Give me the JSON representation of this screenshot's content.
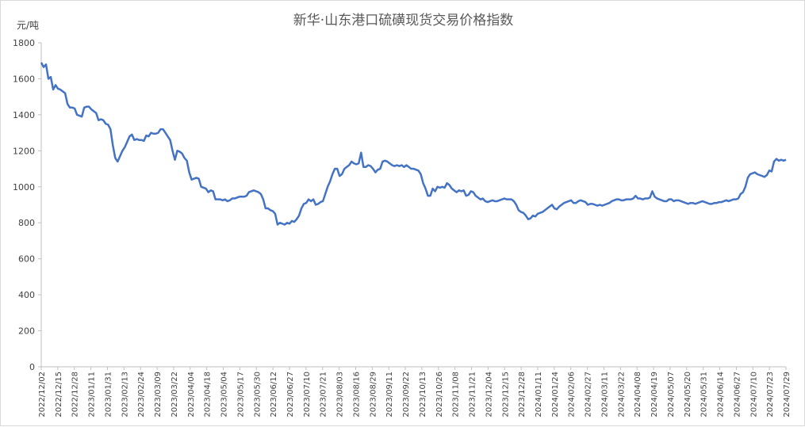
{
  "chart_data": {
    "type": "line",
    "title": "新华·山东港口硫磺现货交易价格指数",
    "ylabel": "元/吨",
    "xlabel": "",
    "ylim": [
      0,
      1800
    ],
    "y_ticks": [
      0,
      200,
      400,
      600,
      800,
      1000,
      1200,
      1400,
      1600,
      1800
    ],
    "x_tick_labels": [
      "2022/12/02",
      "2022/12/15",
      "2022/12/28",
      "2023/01/11",
      "2023/01/31",
      "2023/02/13",
      "2023/02/24",
      "2023/03/09",
      "2023/03/22",
      "2023/04/04",
      "2023/04/18",
      "2023/05/04",
      "2023/05/17",
      "2023/05/30",
      "2023/06/12",
      "2023/06/27",
      "2023/07/10",
      "2023/07/21",
      "2023/08/03",
      "2023/08/16",
      "2023/08/29",
      "2023/09/11",
      "2023/09/22",
      "2023/10/13",
      "2023/10/26",
      "2023/11/08",
      "2023/11/21",
      "2023/12/04",
      "2023/12/15",
      "2023/12/28",
      "2024/01/11",
      "2024/01/24",
      "2024/02/06",
      "2024/02/27",
      "2024/03/11",
      "2024/03/22",
      "2024/04/08",
      "2024/04/19",
      "2024/05/07",
      "2024/05/20",
      "2024/05/31",
      "2024/06/14",
      "2024/06/27",
      "2024/07/10",
      "2024/07/23",
      "2024/07/29"
    ],
    "grid": false,
    "legend": "none",
    "line_color": "#4472C4",
    "series": [
      {
        "values": [
          1690,
          1665,
          1680,
          1600,
          1610,
          1540,
          1565,
          1545,
          1540,
          1530,
          1520,
          1460,
          1440,
          1440,
          1435,
          1400,
          1395,
          1390,
          1440,
          1445,
          1445,
          1430,
          1420,
          1410,
          1370,
          1375,
          1370,
          1350,
          1345,
          1320,
          1230,
          1160,
          1140,
          1170,
          1200,
          1220,
          1250,
          1280,
          1290,
          1260,
          1265,
          1260,
          1260,
          1255,
          1285,
          1280,
          1300,
          1295,
          1295,
          1300,
          1320,
          1320,
          1300,
          1280,
          1260,
          1200,
          1150,
          1200,
          1195,
          1185,
          1160,
          1145,
          1080,
          1040,
          1045,
          1050,
          1045,
          1000,
          995,
          990,
          970,
          980,
          975,
          930,
          930,
          930,
          925,
          930,
          920,
          925,
          935,
          935,
          940,
          945,
          945,
          945,
          950,
          970,
          975,
          980,
          975,
          970,
          960,
          930,
          880,
          880,
          870,
          865,
          850,
          790,
          800,
          795,
          790,
          800,
          795,
          810,
          805,
          820,
          840,
          880,
          905,
          910,
          930,
          920,
          930,
          900,
          905,
          915,
          920,
          960,
          1000,
          1030,
          1070,
          1100,
          1100,
          1060,
          1070,
          1100,
          1110,
          1120,
          1140,
          1130,
          1125,
          1130,
          1190,
          1110,
          1110,
          1120,
          1115,
          1100,
          1080,
          1095,
          1100,
          1140,
          1145,
          1140,
          1130,
          1120,
          1115,
          1120,
          1115,
          1120,
          1110,
          1120,
          1110,
          1100,
          1100,
          1095,
          1090,
          1070,
          1020,
          990,
          950,
          950,
          990,
          975,
          1000,
          995,
          1000,
          995,
          1020,
          1010,
          990,
          980,
          970,
          980,
          975,
          980,
          950,
          955,
          975,
          970,
          950,
          940,
          930,
          935,
          920,
          915,
          920,
          925,
          920,
          920,
          925,
          930,
          935,
          930,
          930,
          930,
          920,
          900,
          870,
          860,
          855,
          840,
          820,
          825,
          840,
          835,
          850,
          855,
          860,
          870,
          880,
          890,
          900,
          880,
          875,
          890,
          900,
          910,
          915,
          920,
          925,
          910,
          910,
          920,
          925,
          920,
          915,
          900,
          905,
          905,
          900,
          895,
          900,
          895,
          900,
          905,
          910,
          920,
          925,
          930,
          930,
          925,
          925,
          930,
          930,
          930,
          935,
          950,
          935,
          935,
          930,
          935,
          935,
          940,
          975,
          945,
          935,
          930,
          925,
          920,
          920,
          930,
          930,
          920,
          925,
          925,
          920,
          915,
          910,
          905,
          910,
          910,
          905,
          910,
          915,
          920,
          915,
          910,
          905,
          905,
          910,
          910,
          915,
          915,
          920,
          925,
          920,
          925,
          930,
          930,
          935,
          960,
          970,
          1000,
          1050,
          1070,
          1075,
          1080,
          1070,
          1065,
          1060,
          1055,
          1065,
          1090,
          1085,
          1140,
          1155,
          1145,
          1150,
          1145,
          1150
        ]
      }
    ]
  }
}
